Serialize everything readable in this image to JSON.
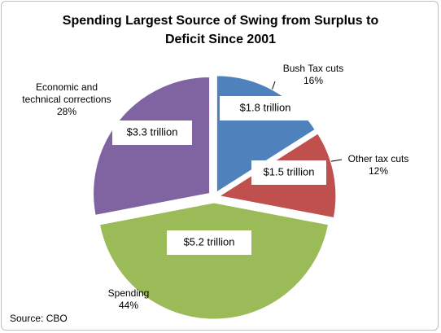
{
  "chart_data": {
    "type": "pie",
    "title": "Spending Largest Source of Swing from Surplus to Deficit Since 2001",
    "categories": [
      "Bush Tax cuts",
      "Other tax cuts",
      "Spending",
      "Economic and technical corrections"
    ],
    "values": [
      16,
      12,
      44,
      28
    ],
    "value_labels": [
      "16%",
      "12%",
      "44%",
      "28%"
    ],
    "amounts": [
      1.8,
      1.5,
      5.2,
      3.3
    ],
    "amount_labels": [
      "$1.8 trillion",
      "$1.5 trillion",
      "$5.2 trillion",
      "$3.3 trillion"
    ],
    "colors": [
      "#4f81bd",
      "#c0504d",
      "#9bbb59",
      "#8064a2"
    ],
    "source": "Source: CBO"
  }
}
